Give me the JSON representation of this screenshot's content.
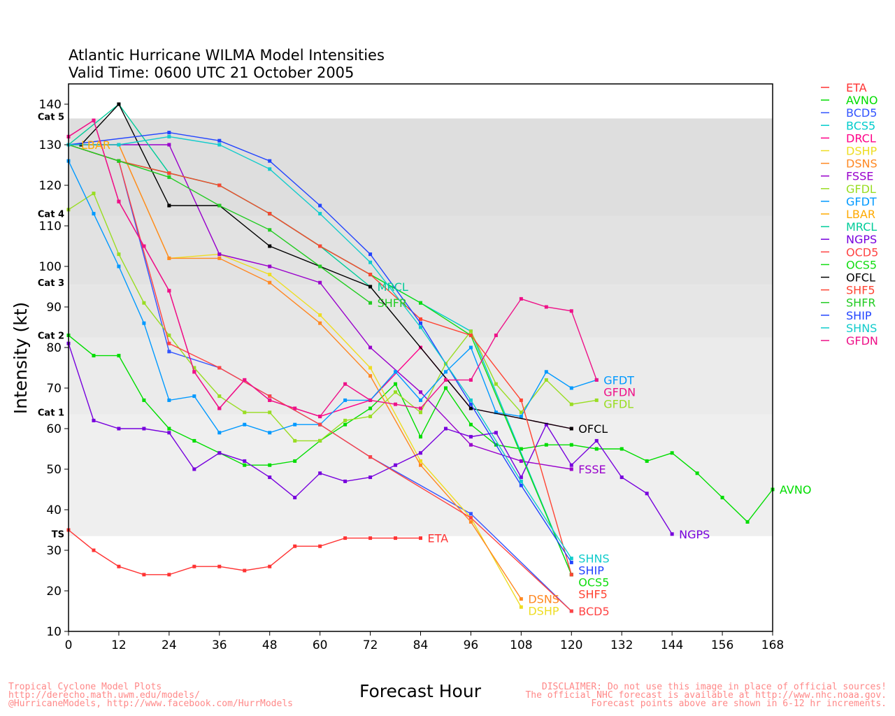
{
  "chart_data": {
    "type": "line",
    "title": "Atlantic Hurricane WILMA Model Intensities",
    "subtitle": "Valid Time: 0600 UTC 21 October 2005",
    "xlabel": "Forecast Hour",
    "ylabel": "Intensity (kt)",
    "xlim": [
      0,
      168
    ],
    "ylim": [
      10,
      145
    ],
    "xticks": [
      0,
      12,
      24,
      36,
      48,
      60,
      72,
      84,
      96,
      108,
      120,
      132,
      144,
      156,
      168
    ],
    "yticks": [
      10,
      20,
      30,
      40,
      50,
      60,
      70,
      80,
      90,
      100,
      110,
      120,
      130,
      140
    ],
    "categories": [
      {
        "label": "TS",
        "min": 33.5,
        "max": 63.5,
        "color": "#efefef"
      },
      {
        "label": "Cat 1",
        "min": 63.5,
        "max": 82.5,
        "color": "#ebebeb"
      },
      {
        "label": "Cat 2",
        "min": 82.5,
        "max": 95.5,
        "color": "#e6e6e6"
      },
      {
        "label": "Cat 3",
        "min": 95.5,
        "max": 112.5,
        "color": "#e2e2e2"
      },
      {
        "label": "Cat 4",
        "min": 112.5,
        "max": 136.5,
        "color": "#dedede"
      },
      {
        "label": "Cat 5",
        "min": 136.5,
        "max": 145,
        "color": "#ffffff"
      }
    ],
    "series": [
      {
        "name": "ETA",
        "color": "#ff3333",
        "label": "ETA",
        "points": [
          [
            0,
            35
          ],
          [
            6,
            30
          ],
          [
            12,
            26
          ],
          [
            18,
            24
          ],
          [
            24,
            24
          ],
          [
            30,
            26
          ],
          [
            36,
            26
          ],
          [
            42,
            25
          ],
          [
            48,
            26
          ],
          [
            54,
            31
          ],
          [
            60,
            31
          ],
          [
            66,
            33
          ],
          [
            72,
            33
          ],
          [
            78,
            33
          ],
          [
            84,
            33
          ]
        ]
      },
      {
        "name": "AVNO",
        "color": "#00dd00",
        "label": "AVNO",
        "points": [
          [
            0,
            83
          ],
          [
            6,
            78
          ],
          [
            12,
            78
          ],
          [
            18,
            67
          ],
          [
            24,
            60
          ],
          [
            30,
            57
          ],
          [
            36,
            54
          ],
          [
            42,
            51
          ],
          [
            48,
            51
          ],
          [
            54,
            52
          ],
          [
            60,
            57
          ],
          [
            66,
            61
          ],
          [
            72,
            65
          ],
          [
            78,
            71
          ],
          [
            84,
            58
          ],
          [
            90,
            70
          ],
          [
            96,
            61
          ],
          [
            102,
            56
          ],
          [
            108,
            55
          ],
          [
            114,
            56
          ],
          [
            120,
            56
          ],
          [
            126,
            55
          ],
          [
            132,
            55
          ],
          [
            138,
            52
          ],
          [
            144,
            54
          ],
          [
            150,
            49
          ],
          [
            156,
            43
          ],
          [
            162,
            37
          ],
          [
            168,
            45
          ]
        ]
      },
      {
        "name": "BCD5",
        "color": "#3355ff",
        "label": "",
        "points": [
          [
            0,
            130
          ],
          [
            12,
            126
          ],
          [
            24,
            79
          ],
          [
            36,
            75
          ],
          [
            48,
            68
          ],
          [
            60,
            61
          ],
          [
            72,
            53
          ],
          [
            96,
            39
          ],
          [
            120,
            15
          ]
        ]
      },
      {
        "name": "BCS5",
        "color": "#00cccc",
        "label": "",
        "points": [
          [
            0,
            130
          ],
          [
            12,
            126
          ],
          [
            24,
            123
          ],
          [
            36,
            120
          ],
          [
            48,
            113
          ],
          [
            60,
            105
          ],
          [
            72,
            98
          ],
          [
            84,
            91
          ],
          [
            96,
            84
          ],
          [
            120,
            24
          ]
        ]
      },
      {
        "name": "DRCL",
        "color": "#ff0088",
        "label": "",
        "points": [
          [
            0,
            132
          ],
          [
            6,
            136
          ],
          [
            12,
            116
          ],
          [
            18,
            105
          ],
          [
            24,
            94
          ],
          [
            30,
            74
          ],
          [
            36,
            65
          ],
          [
            42,
            72
          ],
          [
            48,
            67
          ],
          [
            60,
            63
          ],
          [
            72,
            67
          ],
          [
            84,
            80
          ],
          [
            96,
            65
          ],
          [
            120,
            60
          ]
        ]
      },
      {
        "name": "DSHP",
        "color": "#eedd22",
        "label": "DSHP",
        "points": [
          [
            0,
            130
          ],
          [
            12,
            130
          ],
          [
            24,
            102
          ],
          [
            36,
            103
          ],
          [
            48,
            98
          ],
          [
            60,
            88
          ],
          [
            72,
            75
          ],
          [
            84,
            52
          ],
          [
            96,
            38
          ],
          [
            108,
            16
          ]
        ]
      },
      {
        "name": "DSNS",
        "color": "#ff8822",
        "label": "DSNS",
        "points": [
          [
            0,
            130
          ],
          [
            12,
            130
          ],
          [
            24,
            102
          ],
          [
            36,
            102
          ],
          [
            48,
            96
          ],
          [
            60,
            86
          ],
          [
            72,
            73
          ],
          [
            84,
            51
          ],
          [
            96,
            37
          ],
          [
            108,
            18
          ]
        ]
      },
      {
        "name": "FSSE",
        "color": "#9900cc",
        "label": "FSSE",
        "points": [
          [
            0,
            130
          ],
          [
            12,
            130
          ],
          [
            24,
            130
          ],
          [
            36,
            103
          ],
          [
            48,
            100
          ],
          [
            60,
            96
          ],
          [
            72,
            80
          ],
          [
            84,
            69
          ],
          [
            96,
            56
          ],
          [
            108,
            52
          ],
          [
            120,
            50
          ]
        ]
      },
      {
        "name": "GFDL",
        "color": "#99dd22",
        "label": "GFDL",
        "points": [
          [
            0,
            114
          ],
          [
            6,
            118
          ],
          [
            12,
            103
          ],
          [
            18,
            91
          ],
          [
            24,
            83
          ],
          [
            30,
            75
          ],
          [
            36,
            68
          ],
          [
            42,
            64
          ],
          [
            48,
            64
          ],
          [
            54,
            57
          ],
          [
            60,
            57
          ],
          [
            66,
            62
          ],
          [
            72,
            63
          ],
          [
            78,
            69
          ],
          [
            84,
            64
          ],
          [
            90,
            76
          ],
          [
            96,
            84
          ],
          [
            102,
            71
          ],
          [
            108,
            64
          ],
          [
            114,
            72
          ],
          [
            120,
            66
          ],
          [
            126,
            67
          ]
        ]
      },
      {
        "name": "GFDT",
        "color": "#0099ff",
        "label": "GFDT",
        "points": [
          [
            0,
            126
          ],
          [
            6,
            113
          ],
          [
            12,
            100
          ],
          [
            18,
            86
          ],
          [
            24,
            67
          ],
          [
            30,
            68
          ],
          [
            36,
            59
          ],
          [
            42,
            61
          ],
          [
            48,
            59
          ],
          [
            54,
            61
          ],
          [
            60,
            61
          ],
          [
            66,
            67
          ],
          [
            72,
            67
          ],
          [
            78,
            74
          ],
          [
            84,
            67
          ],
          [
            90,
            74
          ],
          [
            96,
            80
          ],
          [
            102,
            64
          ],
          [
            108,
            63
          ],
          [
            114,
            74
          ],
          [
            120,
            70
          ],
          [
            126,
            72
          ]
        ]
      },
      {
        "name": "LBAR",
        "color": "#ffaa00",
        "label": "LBAR",
        "points": [
          [
            0,
            130
          ]
        ]
      },
      {
        "name": "MRCL",
        "color": "#00cc99",
        "label": "MRCL",
        "points": [
          [
            0,
            130
          ],
          [
            12,
            140
          ],
          [
            24,
            123
          ],
          [
            36,
            120
          ],
          [
            48,
            113
          ],
          [
            60,
            105
          ],
          [
            72,
            95
          ]
        ]
      },
      {
        "name": "NGPS",
        "color": "#7700dd",
        "label": "NGPS",
        "points": [
          [
            0,
            81
          ],
          [
            6,
            62
          ],
          [
            12,
            60
          ],
          [
            18,
            60
          ],
          [
            24,
            59
          ],
          [
            30,
            50
          ],
          [
            36,
            54
          ],
          [
            42,
            52
          ],
          [
            48,
            48
          ],
          [
            54,
            43
          ],
          [
            60,
            49
          ],
          [
            66,
            47
          ],
          [
            72,
            48
          ],
          [
            78,
            51
          ],
          [
            84,
            54
          ],
          [
            90,
            60
          ],
          [
            96,
            58
          ],
          [
            102,
            59
          ],
          [
            108,
            48
          ],
          [
            114,
            61
          ],
          [
            120,
            51
          ],
          [
            126,
            57
          ],
          [
            132,
            48
          ],
          [
            138,
            44
          ],
          [
            144,
            34
          ]
        ]
      },
      {
        "name": "OCD5",
        "color": "#ff4444",
        "label": "BCD5",
        "points": [
          [
            0,
            130
          ],
          [
            12,
            126
          ],
          [
            24,
            81
          ],
          [
            36,
            75
          ],
          [
            48,
            68
          ],
          [
            60,
            61
          ],
          [
            72,
            53
          ],
          [
            96,
            38
          ],
          [
            120,
            15
          ]
        ]
      },
      {
        "name": "OCS5",
        "color": "#11dd11",
        "label": "OCS5",
        "points": [
          [
            0,
            130
          ],
          [
            12,
            126
          ],
          [
            24,
            123
          ],
          [
            36,
            120
          ],
          [
            48,
            113
          ],
          [
            60,
            105
          ],
          [
            72,
            98
          ],
          [
            84,
            91
          ],
          [
            96,
            83
          ],
          [
            120,
            24
          ]
        ]
      },
      {
        "name": "OFCL",
        "color": "#000000",
        "label": "OFCL",
        "points": [
          [
            3,
            130
          ],
          [
            12,
            140
          ],
          [
            24,
            115
          ],
          [
            36,
            115
          ],
          [
            48,
            105
          ],
          [
            72,
            95
          ],
          [
            96,
            65
          ],
          [
            120,
            60
          ]
        ]
      },
      {
        "name": "SHF5",
        "color": "#ff4433",
        "label": "SHF5",
        "points": [
          [
            0,
            130
          ],
          [
            12,
            126
          ],
          [
            24,
            123
          ],
          [
            36,
            120
          ],
          [
            48,
            113
          ],
          [
            60,
            105
          ],
          [
            72,
            98
          ],
          [
            84,
            87
          ],
          [
            96,
            83
          ],
          [
            108,
            67
          ],
          [
            120,
            24
          ]
        ]
      },
      {
        "name": "SHFR",
        "color": "#22cc22",
        "label": "SHFR",
        "points": [
          [
            0,
            130
          ],
          [
            12,
            126
          ],
          [
            24,
            122
          ],
          [
            36,
            115
          ],
          [
            48,
            109
          ],
          [
            60,
            100
          ],
          [
            72,
            91
          ]
        ]
      },
      {
        "name": "SHIP",
        "color": "#2244ff",
        "label": "SHIP",
        "points": [
          [
            0,
            130
          ],
          [
            24,
            133
          ],
          [
            36,
            131
          ],
          [
            48,
            126
          ],
          [
            60,
            115
          ],
          [
            72,
            103
          ],
          [
            84,
            86
          ],
          [
            96,
            66
          ],
          [
            108,
            46
          ],
          [
            120,
            27
          ]
        ]
      },
      {
        "name": "SHNS",
        "color": "#11cccc",
        "label": "SHNS",
        "points": [
          [
            0,
            130
          ],
          [
            12,
            130
          ],
          [
            24,
            132
          ],
          [
            36,
            130
          ],
          [
            48,
            124
          ],
          [
            60,
            113
          ],
          [
            72,
            101
          ],
          [
            84,
            85
          ],
          [
            96,
            67
          ],
          [
            108,
            47
          ],
          [
            120,
            28
          ]
        ]
      },
      {
        "name": "GFDN",
        "color": "#ee1188",
        "label": "GFDN",
        "points": [
          [
            0,
            132
          ],
          [
            6,
            136
          ],
          [
            12,
            116
          ],
          [
            18,
            105
          ],
          [
            24,
            94
          ],
          [
            30,
            74
          ],
          [
            36,
            65
          ],
          [
            42,
            72
          ],
          [
            48,
            67
          ],
          [
            54,
            65
          ],
          [
            60,
            63
          ],
          [
            66,
            71
          ],
          [
            72,
            67
          ],
          [
            78,
            66
          ],
          [
            84,
            65
          ],
          [
            90,
            72
          ],
          [
            96,
            72
          ],
          [
            102,
            83
          ],
          [
            108,
            92
          ],
          [
            114,
            90
          ],
          [
            120,
            89
          ],
          [
            126,
            72
          ]
        ]
      }
    ]
  },
  "footer": {
    "left": [
      "Tropical Cyclone Model Plots",
      "http://derecho.math.uwm.edu/models/",
      "@HurricaneModels, http://www.facebook.com/HurrModels"
    ],
    "right": [
      "DISCLAIMER: Do not use this image in place of official sources!",
      "The official NHC forecast is available at http://www.nhc.noaa.gov.",
      "Forecast points above are shown in 6-12 hr increments."
    ]
  }
}
